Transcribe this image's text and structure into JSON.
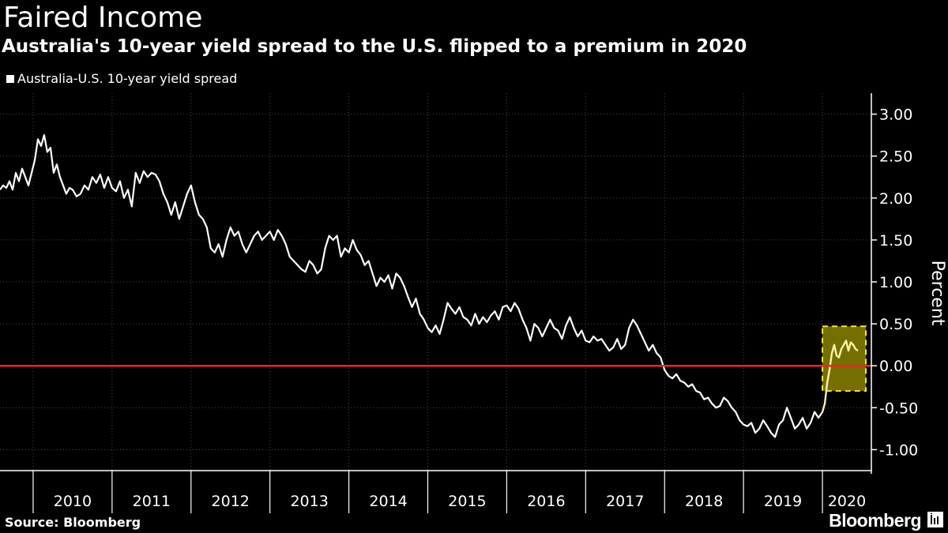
{
  "header": {
    "title": "Faired Income",
    "subtitle": "Australia's 10-year yield spread to the U.S. flipped to a premium in 2020"
  },
  "footer": {
    "source": "Source: Bloomberg",
    "brand": "Bloomberg"
  },
  "colors": {
    "background": "#000000",
    "series": "#ffffff",
    "highlight_series": "#fff3a0",
    "zero_line": "#e8262a",
    "highlight_fill": "#8a8200",
    "highlight_border": "#f5e53a",
    "grid": "#4a4a4a"
  },
  "chart_data": {
    "type": "line",
    "title": "Australia's 10-year yield spread to the U.S. flipped to a premium in 2020",
    "xlabel": "",
    "ylabel": "Percent",
    "ylim": [
      -1.25,
      3.25
    ],
    "yticks": [
      "3.00",
      "2.50",
      "2.00",
      "1.50",
      "1.00",
      "0.50",
      "0.00",
      "-0.50",
      "-1.00"
    ],
    "ytick_values": [
      3.0,
      2.5,
      2.0,
      1.5,
      1.0,
      0.5,
      0.0,
      -0.5,
      -1.0
    ],
    "xlim": [
      2009.58,
      2020.62
    ],
    "xticks": [
      "2010",
      "2011",
      "2012",
      "2013",
      "2014",
      "2015",
      "2016",
      "2017",
      "2018",
      "2019",
      "2020"
    ],
    "year_boundaries": [
      2010,
      2011,
      2012,
      2013,
      2014,
      2015,
      2016,
      2017,
      2018,
      2019,
      2020
    ],
    "legend": [
      {
        "name": "Australia-U.S. 10-year yield spread",
        "position": "top-left"
      }
    ],
    "reference_line": {
      "value": 0.0,
      "label": ""
    },
    "highlight_region": {
      "x_start": 2020.0,
      "x_end": 2020.55,
      "y_low": -0.3,
      "y_high": 0.47
    },
    "series": [
      {
        "name": "Australia-U.S. 10-year yield spread",
        "x": [
          2009.58,
          2009.62,
          2009.66,
          2009.7,
          2009.74,
          2009.78,
          2009.82,
          2009.86,
          2009.9,
          2009.94,
          2009.98,
          2010.02,
          2010.06,
          2010.1,
          2010.14,
          2010.18,
          2010.22,
          2010.26,
          2010.3,
          2010.34,
          2010.38,
          2010.42,
          2010.46,
          2010.5,
          2010.55,
          2010.6,
          2010.65,
          2010.7,
          2010.75,
          2010.8,
          2010.85,
          2010.9,
          2010.95,
          2011.0,
          2011.05,
          2011.1,
          2011.15,
          2011.2,
          2011.25,
          2011.3,
          2011.35,
          2011.4,
          2011.45,
          2011.5,
          2011.55,
          2011.6,
          2011.65,
          2011.7,
          2011.75,
          2011.8,
          2011.85,
          2011.9,
          2011.95,
          2012.0,
          2012.05,
          2012.1,
          2012.15,
          2012.2,
          2012.25,
          2012.3,
          2012.35,
          2012.4,
          2012.45,
          2012.5,
          2012.55,
          2012.6,
          2012.65,
          2012.7,
          2012.75,
          2012.8,
          2012.85,
          2012.9,
          2012.95,
          2013.0,
          2013.05,
          2013.1,
          2013.15,
          2013.2,
          2013.25,
          2013.3,
          2013.35,
          2013.4,
          2013.45,
          2013.5,
          2013.55,
          2013.6,
          2013.65,
          2013.7,
          2013.75,
          2013.8,
          2013.85,
          2013.9,
          2013.95,
          2014.0,
          2014.05,
          2014.1,
          2014.15,
          2014.2,
          2014.25,
          2014.3,
          2014.35,
          2014.4,
          2014.45,
          2014.5,
          2014.55,
          2014.6,
          2014.65,
          2014.7,
          2014.75,
          2014.8,
          2014.85,
          2014.9,
          2014.95,
          2015.0,
          2015.05,
          2015.1,
          2015.15,
          2015.2,
          2015.25,
          2015.3,
          2015.35,
          2015.4,
          2015.45,
          2015.5,
          2015.55,
          2015.6,
          2015.65,
          2015.7,
          2015.75,
          2015.8,
          2015.85,
          2015.9,
          2015.95,
          2016.0,
          2016.05,
          2016.1,
          2016.15,
          2016.2,
          2016.25,
          2016.3,
          2016.35,
          2016.4,
          2016.45,
          2016.5,
          2016.55,
          2016.6,
          2016.65,
          2016.7,
          2016.75,
          2016.8,
          2016.85,
          2016.9,
          2016.95,
          2017.0,
          2017.05,
          2017.1,
          2017.15,
          2017.2,
          2017.25,
          2017.3,
          2017.35,
          2017.4,
          2017.45,
          2017.5,
          2017.55,
          2017.6,
          2017.65,
          2017.7,
          2017.75,
          2017.8,
          2017.85,
          2017.9,
          2017.95,
          2018.0,
          2018.05,
          2018.1,
          2018.15,
          2018.2,
          2018.25,
          2018.3,
          2018.35,
          2018.4,
          2018.45,
          2018.5,
          2018.55,
          2018.6,
          2018.65,
          2018.7,
          2018.75,
          2018.8,
          2018.85,
          2018.9,
          2018.95,
          2019.0,
          2019.05,
          2019.1,
          2019.15,
          2019.2,
          2019.25,
          2019.3,
          2019.35,
          2019.4,
          2019.45,
          2019.5,
          2019.55,
          2019.6,
          2019.65,
          2019.7,
          2019.75,
          2019.8,
          2019.85,
          2019.9,
          2019.95,
          2020.0,
          2020.03,
          2020.06,
          2020.09,
          2020.12,
          2020.15,
          2020.18,
          2020.21,
          2020.24,
          2020.27,
          2020.3,
          2020.33,
          2020.36,
          2020.39,
          2020.42,
          2020.45
        ],
        "values": [
          2.1,
          2.15,
          2.12,
          2.2,
          2.1,
          2.3,
          2.2,
          2.35,
          2.25,
          2.15,
          2.3,
          2.45,
          2.7,
          2.62,
          2.75,
          2.55,
          2.6,
          2.3,
          2.4,
          2.25,
          2.15,
          2.05,
          2.12,
          2.1,
          2.02,
          2.05,
          2.15,
          2.1,
          2.25,
          2.18,
          2.28,
          2.12,
          2.25,
          2.12,
          2.08,
          2.2,
          2.0,
          2.1,
          1.9,
          2.3,
          2.18,
          2.32,
          2.25,
          2.3,
          2.28,
          2.2,
          2.05,
          1.95,
          1.8,
          1.95,
          1.75,
          1.9,
          2.05,
          2.15,
          1.95,
          1.8,
          1.75,
          1.65,
          1.4,
          1.35,
          1.45,
          1.3,
          1.5,
          1.65,
          1.55,
          1.6,
          1.45,
          1.35,
          1.45,
          1.55,
          1.6,
          1.5,
          1.55,
          1.6,
          1.5,
          1.62,
          1.55,
          1.45,
          1.3,
          1.25,
          1.2,
          1.15,
          1.12,
          1.25,
          1.2,
          1.1,
          1.15,
          1.4,
          1.55,
          1.5,
          1.55,
          1.3,
          1.4,
          1.35,
          1.5,
          1.38,
          1.32,
          1.2,
          1.25,
          1.1,
          0.95,
          1.05,
          1.0,
          1.08,
          0.92,
          1.1,
          1.05,
          0.95,
          0.82,
          0.7,
          0.8,
          0.62,
          0.55,
          0.45,
          0.4,
          0.48,
          0.38,
          0.55,
          0.75,
          0.68,
          0.62,
          0.7,
          0.58,
          0.55,
          0.48,
          0.62,
          0.5,
          0.58,
          0.52,
          0.6,
          0.65,
          0.55,
          0.7,
          0.72,
          0.65,
          0.75,
          0.68,
          0.55,
          0.45,
          0.3,
          0.5,
          0.45,
          0.35,
          0.45,
          0.55,
          0.45,
          0.42,
          0.32,
          0.48,
          0.58,
          0.45,
          0.35,
          0.42,
          0.3,
          0.28,
          0.35,
          0.3,
          0.32,
          0.25,
          0.18,
          0.22,
          0.32,
          0.2,
          0.25,
          0.45,
          0.55,
          0.48,
          0.38,
          0.28,
          0.18,
          0.25,
          0.15,
          0.1,
          -0.05,
          -0.12,
          -0.15,
          -0.1,
          -0.18,
          -0.2,
          -0.25,
          -0.22,
          -0.3,
          -0.32,
          -0.4,
          -0.38,
          -0.45,
          -0.5,
          -0.48,
          -0.38,
          -0.42,
          -0.5,
          -0.55,
          -0.65,
          -0.7,
          -0.72,
          -0.68,
          -0.8,
          -0.75,
          -0.65,
          -0.72,
          -0.8,
          -0.85,
          -0.7,
          -0.65,
          -0.5,
          -0.62,
          -0.75,
          -0.7,
          -0.62,
          -0.75,
          -0.68,
          -0.55,
          -0.62,
          -0.55,
          -0.45,
          -0.2,
          -0.05,
          0.15,
          0.25,
          0.12,
          0.1,
          0.2,
          0.25,
          0.3,
          0.18,
          0.28,
          0.25,
          0.2,
          0.18
        ]
      }
    ]
  }
}
